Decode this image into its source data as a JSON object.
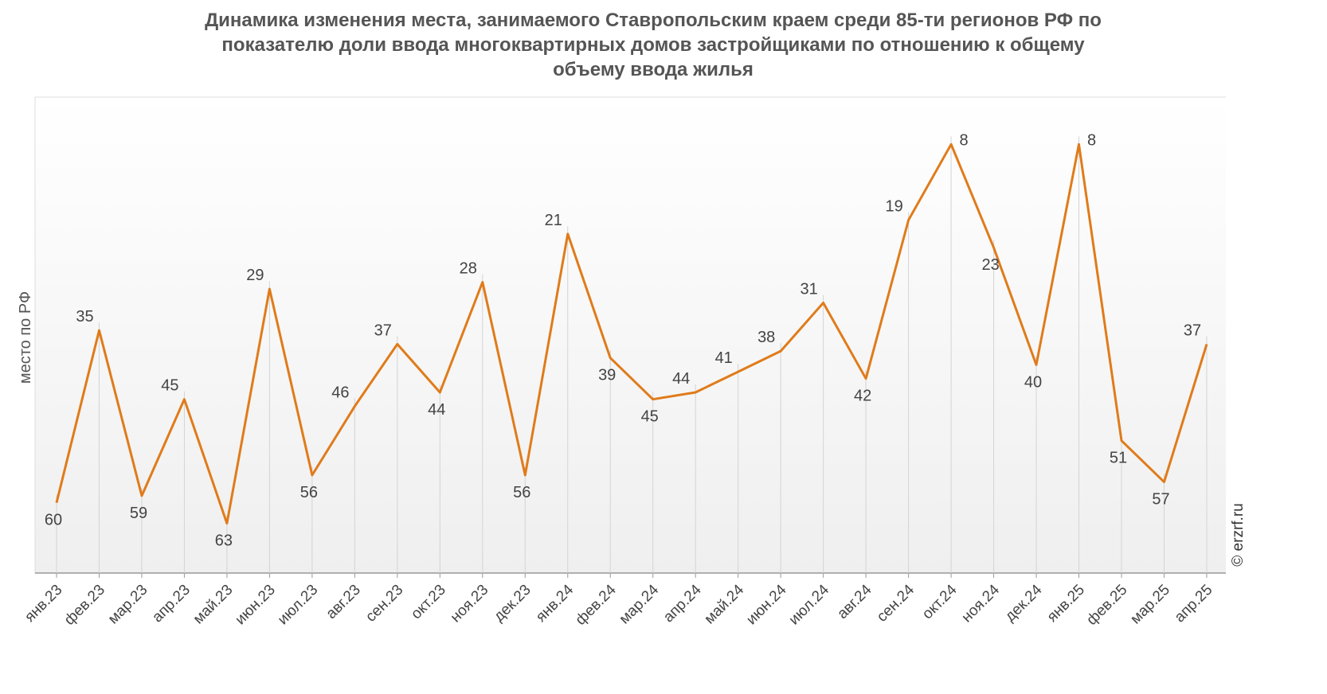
{
  "title_lines": [
    "Динамика изменения места, занимаемого Ставропольским краем среди 85-ти регионов РФ по",
    "показателю доли ввода многоквартирных домов застройщиками по отношению к общему",
    "объему ввода жилья"
  ],
  "watermark": "© erzrf.ru",
  "chart_data": {
    "type": "line",
    "title": "Динамика изменения места, занимаемого Ставропольским краем среди 85-ти регионов РФ по показателю доли ввода многоквартирных домов застройщиками по отношению к общему объему ввода жилья",
    "xlabel": "",
    "ylabel": "место по РФ",
    "categories": [
      "янв.23",
      "фев.23",
      "мар.23",
      "апр.23",
      "май.23",
      "июн.23",
      "июл.23",
      "авг.23",
      "сен.23",
      "окт.23",
      "ноя.23",
      "дек.23",
      "янв.24",
      "фев.24",
      "мар.24",
      "апр.24",
      "май.24",
      "июн.24",
      "июл.24",
      "авг.24",
      "сен.24",
      "окт.24",
      "ноя.24",
      "дек.24",
      "янв.25",
      "фев.25",
      "мар.25",
      "апр.25"
    ],
    "series": [
      {
        "values": [
          60,
          35,
          59,
          45,
          63,
          29,
          56,
          46,
          37,
          44,
          28,
          56,
          21,
          39,
          45,
          44,
          41,
          38,
          31,
          42,
          19,
          8,
          23,
          40,
          8,
          51,
          57,
          37
        ]
      }
    ],
    "ylim": [
      0,
      69
    ],
    "y_inverted": true,
    "grid": false,
    "color": "#E07B1A"
  }
}
